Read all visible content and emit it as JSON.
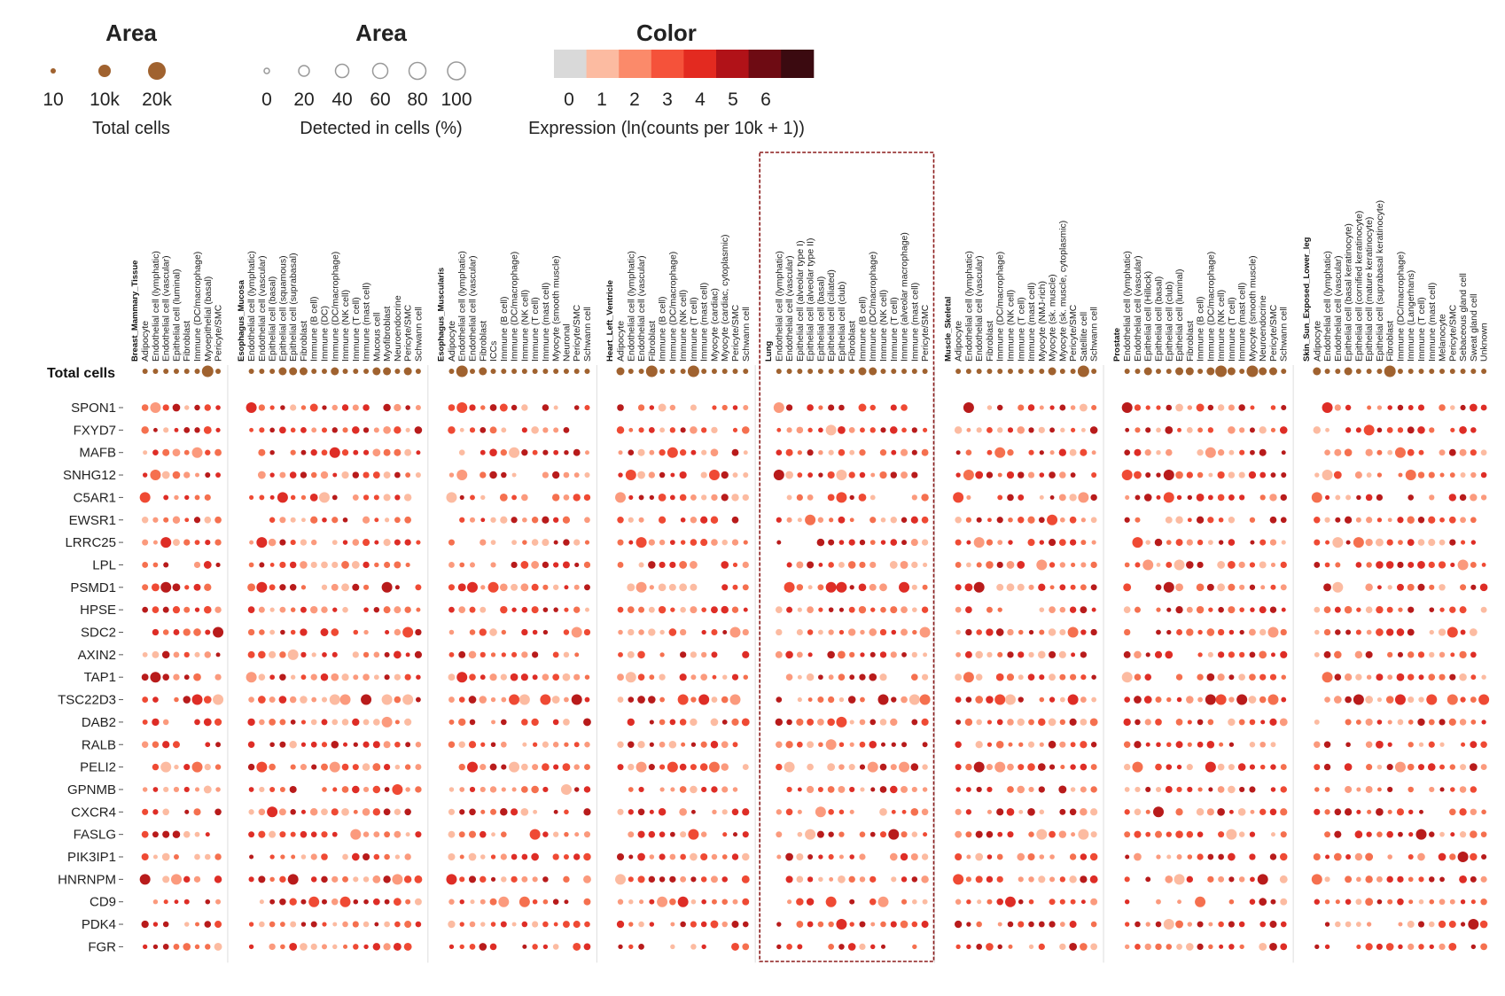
{
  "legend": {
    "total_cells": {
      "title": "Area",
      "ticks": [
        "10",
        "10k",
        "20k"
      ],
      "label": "Total cells"
    },
    "detected": {
      "title": "Area",
      "ticks": [
        "0",
        "20",
        "40",
        "60",
        "80",
        "100"
      ],
      "label": "Detected in cells (%)"
    },
    "color": {
      "title": "Color",
      "ticks": [
        "0",
        "1",
        "2",
        "3",
        "4",
        "5",
        "6"
      ],
      "label": "Expression (ln(counts per 10k + 1))",
      "swatches": [
        "#d9d9d9",
        "#fcbba1",
        "#fb8a6a",
        "#f5523a",
        "#e32a20",
        "#b11218",
        "#6e0b13",
        "#3b0a10"
      ]
    }
  },
  "colors": {
    "total_cells_dot": "#a0622f",
    "highlight_box": "#8b1a1a",
    "separator": "#dddddd"
  },
  "chart_data": {
    "type": "dotplot",
    "total_cells_label": "Total cells",
    "highlighted_tissue": "Lung",
    "genes": [
      "SPON1",
      "FXYD7",
      "MAFB",
      "SNHG12",
      "C5AR1",
      "EWSR1",
      "LRRC25",
      "LPL",
      "PSMD1",
      "HPSE",
      "SDC2",
      "AXIN2",
      "TAP1",
      "TSC22D3",
      "DAB2",
      "RALB",
      "PELI2",
      "GPNMB",
      "CXCR4",
      "FASLG",
      "PIK3IP1",
      "HNRNPM",
      "CD9",
      "PDK4",
      "FGR"
    ],
    "tissues": [
      {
        "name": "Breast_Mammary_Tissue",
        "cell_types": [
          "Adipocyte",
          "Endothelial cell (lymphatic)",
          "Endothelial cell (vascular)",
          "Epithelial cell (luminal)",
          "Fibroblast",
          "Immune (DC/macrophage)",
          "Myoepithelial (basal)",
          "Pericyte/SMC"
        ]
      },
      {
        "name": "Esophagus_Mucosa",
        "cell_types": [
          "Endothelial cell (lymphatic)",
          "Endothelial cell (vascular)",
          "Epithelial cell (basal)",
          "Epithelial cell (squamous)",
          "Epithelial cell (suprabasal)",
          "Fibroblast",
          "Immune (B cell)",
          "Immune (DC)",
          "Immune (DC/macrophage)",
          "Immune (NK cell)",
          "Immune (T cell)",
          "Immune (mast cell)",
          "Mucous cell",
          "Myofibroblast",
          "Neuroendocrine",
          "Pericyte/SMC",
          "Schwann cell"
        ]
      },
      {
        "name": "Esophagus_Muscularis",
        "cell_types": [
          "Adipocyte",
          "Endothelial cell (lymphatic)",
          "Endothelial cell (vascular)",
          "Fibroblast",
          "ICCs",
          "Immune (B cell)",
          "Immune (DC/macrophage)",
          "Immune (NK cell)",
          "Immune (T cell)",
          "Immune (mast cell)",
          "Myocyte (smooth muscle)",
          "Neuronal",
          "Pericyte/SMC",
          "Schwann cell"
        ]
      },
      {
        "name": "Heart_Left_Ventricle",
        "cell_types": [
          "Adipocyte",
          "Endothelial cell (lymphatic)",
          "Endothelial cell (vascular)",
          "Fibroblast",
          "Immune (B cell)",
          "Immune (DC/macrophage)",
          "Immune (NK cell)",
          "Immune (T cell)",
          "Immune (mast cell)",
          "Myocyte (cardiac)",
          "Myocyte (cardiac, cytoplasmic)",
          "Pericyte/SMC",
          "Schwann cell"
        ]
      },
      {
        "name": "Lung",
        "cell_types": [
          "Endothelial cell (lymphatic)",
          "Endothelial cell (vascular)",
          "Epithelial cell (alveolar type I)",
          "Epithelial cell (alveolar type II)",
          "Epithelial cell (basal)",
          "Epithelial cell (ciliated)",
          "Epithelial cell (club)",
          "Fibroblast",
          "Immune (B cell)",
          "Immune (DC/macrophage)",
          "Immune (NK cell)",
          "Immune (T cell)",
          "Immune (alveolar macrophage)",
          "Immune (mast cell)",
          "Pericyte/SMC"
        ]
      },
      {
        "name": "Muscle_Skeletal",
        "cell_types": [
          "Adipocyte",
          "Endothelial cell (lymphatic)",
          "Endothelial cell (vascular)",
          "Fibroblast",
          "Immune (DC/macrophage)",
          "Immune (NK cell)",
          "Immune (T cell)",
          "Immune (mast cell)",
          "Myocyte (NMJ-rich)",
          "Myocyte (sk. muscle)",
          "Myocyte (sk. muscle, cytoplasmic)",
          "Pericyte/SMC",
          "Satellite cell",
          "Schwann cell"
        ]
      },
      {
        "name": "Prostate",
        "cell_types": [
          "Endothelial cell (lymphatic)",
          "Endothelial cell (vascular)",
          "Epithelial cell (Hillock)",
          "Epithelial cell (basal)",
          "Epithelial cell (club)",
          "Epithelial cell (luminal)",
          "Fibroblast",
          "Immune (B cell)",
          "Immune (DC/macrophage)",
          "Immune (NK cell)",
          "Immune (T cell)",
          "Immune (mast cell)",
          "Myocyte (smooth muscle)",
          "Neuroendocrine",
          "Pericyte/SMC",
          "Schwann cell"
        ]
      },
      {
        "name": "Skin_Sun_Exposed_Lower_leg",
        "cell_types": [
          "Adipocyte",
          "Endothelial cell (lymphatic)",
          "Endothelial cell (vascular)",
          "Epithelial cell (basal keratinocyte)",
          "Epithelial cell (cornified keratinocyte)",
          "Epithelial cell (mature keratinocyte)",
          "Epithelial cell (suprabasal keratinocyte)",
          "Fibroblast",
          "Immune (DC/macrophage)",
          "Immune (Langerhans)",
          "Immune (T cell)",
          "Immune (mast cell)",
          "Melanocyte",
          "Pericyte/SMC",
          "Sebaceous gland cell",
          "Sweat gland cell",
          "Unknown"
        ]
      }
    ]
  }
}
